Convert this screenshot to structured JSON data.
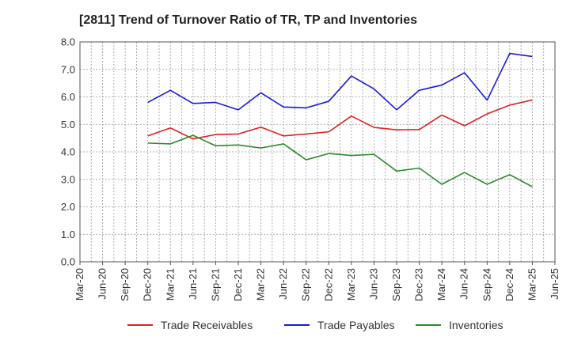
{
  "chart_data": {
    "type": "line",
    "title": "[2811]  Trend of Turnover Ratio of TR, TP and Inventories",
    "xlabel": "",
    "ylabel": "",
    "ylim": [
      0,
      8
    ],
    "yticks": [
      "0.0",
      "1.0",
      "2.0",
      "3.0",
      "4.0",
      "5.0",
      "6.0",
      "7.0",
      "8.0"
    ],
    "x": [
      "Mar-20",
      "Jun-20",
      "Sep-20",
      "Dec-20",
      "Mar-21",
      "Jun-21",
      "Sep-21",
      "Dec-21",
      "Mar-22",
      "Jun-22",
      "Sep-22",
      "Dec-22",
      "Mar-23",
      "Jun-23",
      "Sep-23",
      "Dec-23",
      "Mar-24",
      "Jun-24",
      "Sep-24",
      "Dec-24",
      "Mar-25",
      "Jun-25"
    ],
    "grid": true,
    "legend_position": "bottom",
    "series": [
      {
        "name": "Trade Receivables",
        "color": "#e02020",
        "values": [
          null,
          null,
          null,
          4.58,
          4.87,
          4.47,
          4.63,
          4.65,
          4.9,
          4.58,
          4.65,
          4.73,
          5.3,
          4.89,
          4.8,
          4.81,
          5.34,
          4.95,
          5.38,
          5.7,
          5.89,
          null
        ]
      },
      {
        "name": "Trade Payables",
        "color": "#1a1adb",
        "values": [
          null,
          null,
          null,
          5.8,
          6.24,
          5.76,
          5.8,
          5.53,
          6.15,
          5.63,
          5.6,
          5.84,
          6.76,
          6.29,
          5.53,
          6.24,
          6.43,
          6.88,
          5.88,
          7.58,
          7.47,
          null
        ]
      },
      {
        "name": "Inventories",
        "color": "#2a8a2a",
        "values": [
          null,
          null,
          null,
          4.32,
          4.29,
          4.6,
          4.22,
          4.25,
          4.14,
          4.29,
          3.71,
          3.94,
          3.87,
          3.91,
          3.3,
          3.41,
          2.82,
          3.25,
          2.82,
          3.17,
          2.73,
          null
        ]
      }
    ]
  }
}
